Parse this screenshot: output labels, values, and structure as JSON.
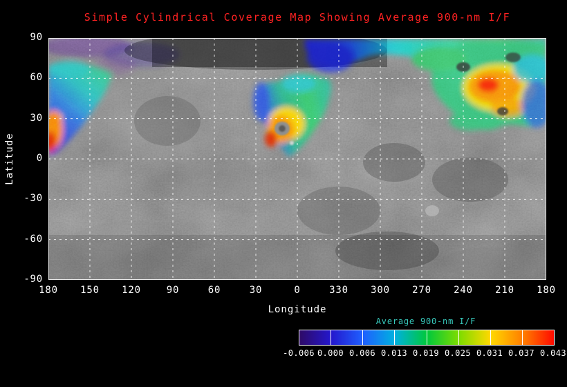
{
  "colors": {
    "background": "#000000",
    "title": "#ff2222",
    "axis_text": "#ffffff",
    "grid": "#ffffff",
    "colorbar_label": "#37c8bb"
  },
  "chart_data": {
    "type": "heatmap",
    "title": "Simple Cylindrical Coverage Map Showing Average 900-nm I/F",
    "xlabel": "Longitude",
    "ylabel": "Latitude",
    "x_tick_labels": [
      "180",
      "150",
      "120",
      "90",
      "60",
      "30",
      "0",
      "330",
      "300",
      "270",
      "240",
      "210",
      "180"
    ],
    "x_tick_values": [
      180,
      150,
      120,
      90,
      60,
      30,
      0,
      330,
      300,
      270,
      240,
      210,
      180
    ],
    "y_tick_labels": [
      "90",
      "60",
      "30",
      "0",
      "-30",
      "-60",
      "-90"
    ],
    "y_tick_values": [
      90,
      60,
      30,
      0,
      -30,
      -60,
      -90
    ],
    "grid": true,
    "grid_style": "dashed-white",
    "basemap": "grayscale shaded-relief asteroid surface, simple cylindrical projection",
    "colorbar_label": "Average 900-nm I/F",
    "colorbar_tick_labels": [
      "-0.006",
      "0.000",
      "0.006",
      "0.013",
      "0.019",
      "0.025",
      "0.031",
      "0.037",
      "0.043"
    ],
    "colorbar_tick_values": [
      -0.006,
      0.0,
      0.006,
      0.013,
      0.019,
      0.025,
      0.031,
      0.037,
      0.043
    ],
    "colorbar_segment_colors": [
      "#2e0a66",
      "#2417cc",
      "#1f5fff",
      "#00b0e0",
      "#00c83c",
      "#7ddc00",
      "#ffd800",
      "#ff8000",
      "#ff0a00"
    ],
    "coverage_regions": [
      {
        "name": "west-limb-patch",
        "lon_span": "180 to 140",
        "lat_span": "5 to 65",
        "dominant_colors": [
          "green",
          "cyan",
          "blue",
          "orange",
          "red"
        ]
      },
      {
        "name": "central-patch",
        "lon_span": "35 to 340",
        "lat_span": "0 to 60",
        "dominant_colors": [
          "green",
          "blue",
          "purple",
          "yellow",
          "orange",
          "red"
        ]
      },
      {
        "name": "eastern-patch",
        "lon_span": "285 to 195",
        "lat_span": "20 to 90",
        "dominant_colors": [
          "red",
          "orange",
          "yellow",
          "green",
          "cyan",
          "blue"
        ]
      },
      {
        "name": "north-polar-band",
        "lon_span": "330 to 180",
        "lat_span": "75 to 90",
        "dominant_colors": [
          "blue",
          "cyan",
          "green"
        ]
      }
    ]
  }
}
